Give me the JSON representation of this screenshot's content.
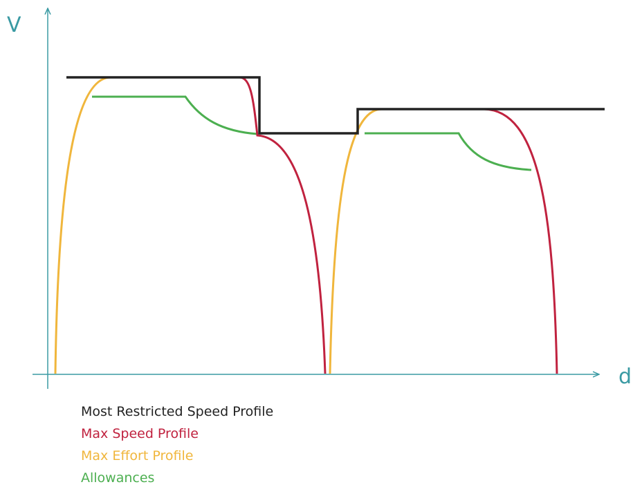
{
  "axes": {
    "y_label": "V",
    "x_label": "d"
  },
  "legend": {
    "restricted": "Most Restricted Speed Profile",
    "max_speed": "Max Speed Profile",
    "max_effort": "Max Effort Profile",
    "allowances": "Allowances"
  },
  "colors": {
    "axis": "#3a9aa3",
    "restricted": "#222222",
    "max_speed": "#c0223f",
    "max_effort": "#f0b63c",
    "allowances": "#4caf50"
  }
}
